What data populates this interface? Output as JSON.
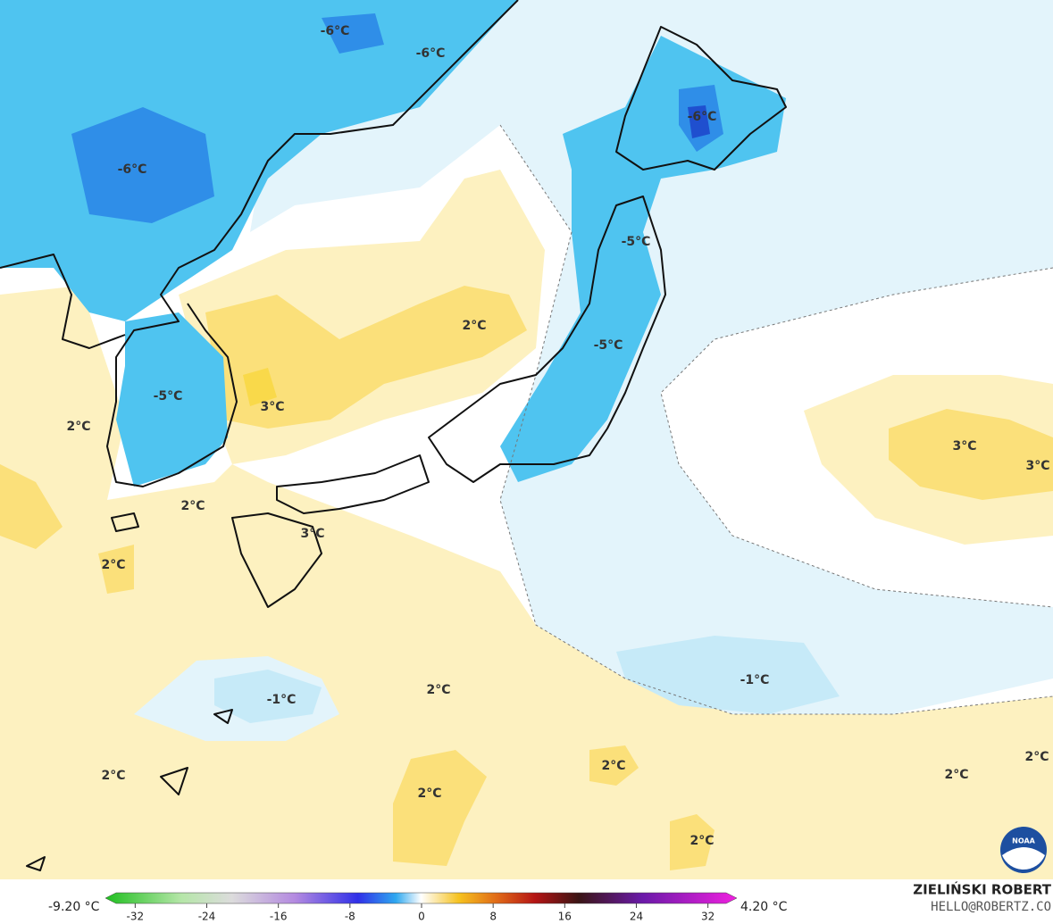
{
  "map": {
    "labels": [
      "-6°C",
      "-6°C",
      "-6°C",
      "-6°C",
      "-5°C",
      "2°C",
      "-5°C",
      "-5°C",
      "3°C",
      "2°C",
      "3°C",
      "3°C",
      "2°C",
      "3°C",
      "2°C",
      "-1°C",
      "-1°C",
      "2°C",
      "2°C",
      "2°C",
      "2°C",
      "2°C",
      "2°C",
      "2°C"
    ]
  },
  "colorbar": {
    "min_label": "-9.20 °C",
    "max_label": "4.20 °C",
    "ticks": [
      -32,
      -24,
      -16,
      -8,
      0,
      8,
      16,
      24,
      32
    ]
  },
  "credit": {
    "author": "ZIELIŃSKI ROBERT",
    "email": "HELLO@ROBERTZ.CO",
    "logo": "NOAA"
  }
}
